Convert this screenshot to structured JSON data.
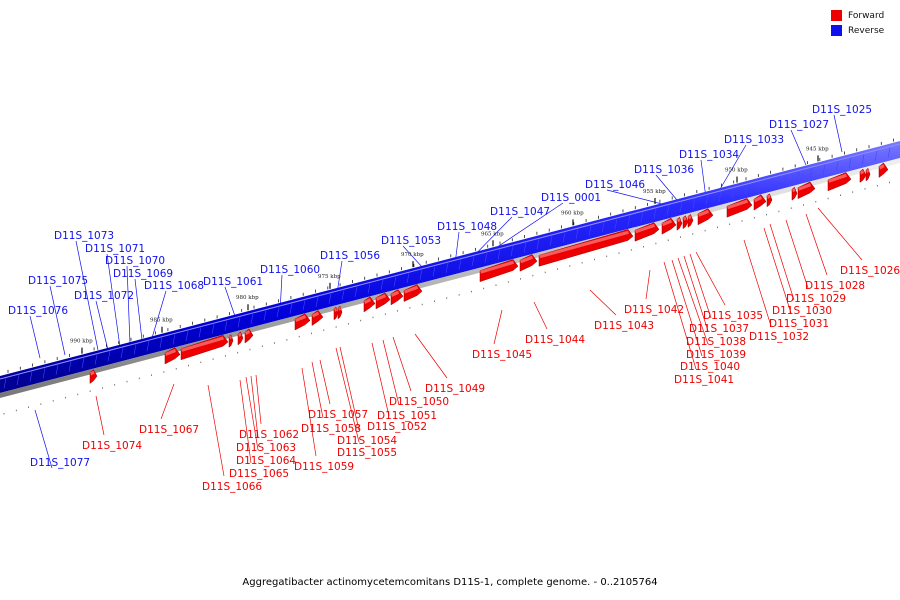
{
  "legend": {
    "forward": {
      "label": "Forward",
      "color": "#ee0000"
    },
    "reverse": {
      "label": "Reverse",
      "color": "#1010ee"
    }
  },
  "caption": "Aggregatibacter actinomycetemcomitans D11S-1, complete genome. - 0..2105764",
  "scale_labels": [
    "990 kbp",
    "985 kbp",
    "980 kbp",
    "975 kbp",
    "970 kbp",
    "965 kbp",
    "960 kbp",
    "955 kbp",
    "950 kbp",
    "945 kbp"
  ],
  "reverse_genes": [
    "D11S_1077",
    "D11S_1076",
    "D11S_1075",
    "D11S_1072",
    "D11S_1073",
    "D11S_1071",
    "D11S_1070",
    "D11S_1069",
    "D11S_1068",
    "D11S_1061",
    "D11S_1060",
    "D11S_1056",
    "D11S_1053",
    "D11S_1048",
    "D11S_1047",
    "D11S_0001",
    "D11S_1046",
    "D11S_1036",
    "D11S_1034",
    "D11S_1033",
    "D11S_1027",
    "D11S_1025"
  ],
  "forward_genes": [
    "D11S_1074",
    "D11S_1067",
    "D11S_1066",
    "D11S_1065",
    "D11S_1064",
    "D11S_1063",
    "D11S_1062",
    "D11S_1059",
    "D11S_1058",
    "D11S_1057",
    "D11S_1055",
    "D11S_1054",
    "D11S_1052",
    "D11S_1051",
    "D11S_1050",
    "D11S_1049",
    "D11S_1045",
    "D11S_1044",
    "D11S_1043",
    "D11S_1042",
    "D11S_1041",
    "D11S_1040",
    "D11S_1039",
    "D11S_1038",
    "D11S_1037",
    "D11S_1035",
    "D11S_1032",
    "D11S_1031",
    "D11S_1030",
    "D11S_1029",
    "D11S_1028",
    "D11S_1026"
  ]
}
